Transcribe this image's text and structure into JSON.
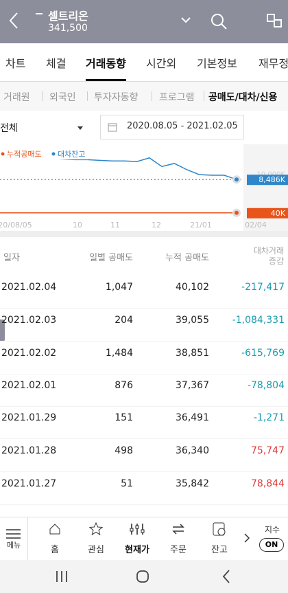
{
  "header": {
    "title": "셀트리온",
    "price": "341,500"
  },
  "tabs": [
    "차트",
    "체결",
    "거래동향",
    "시간외",
    "기본정보",
    "재무정보"
  ],
  "subtabs": [
    "거래원",
    "외국인",
    "투자자동향",
    "프로그램",
    "공매도/대차/신용"
  ],
  "filter": {
    "scope": "전체",
    "period": "2020.08.05 - 2021.02.05"
  },
  "chart": {
    "type": "line",
    "ylim": [
      0,
      16000
    ],
    "yticks": [
      {
        "value": 10000,
        "label": "10,000K"
      }
    ],
    "x_labels": [
      "20/08/05",
      "10",
      "11",
      "12",
      "21/01",
      "02/04"
    ],
    "series": [
      {
        "name": "누적공매도",
        "color": "#e8541a",
        "values": [
          40,
          40,
          40,
          40,
          40,
          40,
          40,
          40,
          40,
          40,
          40,
          40,
          40,
          40,
          40,
          40,
          40,
          40,
          40,
          40
        ],
        "value_labels": [
          null,
          null,
          null,
          null,
          null,
          null,
          null,
          null,
          null,
          null,
          null,
          null,
          null,
          null,
          null,
          null,
          null,
          null,
          null,
          "40K"
        ]
      },
      {
        "name": "대차잔고",
        "color": "#2f86c9",
        "values": [
          14431,
          14274,
          14117,
          13961,
          13804,
          13647,
          13490,
          13490,
          13333,
          13176,
          13176,
          13020,
          13960,
          11765,
          12549,
          10980,
          9725,
          9569,
          9569,
          8486
        ],
        "value_labels": [
          null,
          null,
          null,
          null,
          null,
          null,
          null,
          null,
          null,
          null,
          null,
          null,
          null,
          null,
          null,
          null,
          null,
          null,
          null,
          "8,486K"
        ]
      }
    ]
  },
  "table": {
    "columns": [
      "일자",
      "일별 공매도",
      "누적 공매도",
      "대차거래 증감"
    ],
    "rows": [
      [
        "2021.02.04",
        "1,047",
        "40,102",
        "-217,417"
      ],
      [
        "2021.02.03",
        "204",
        "39,055",
        "-1,084,331"
      ],
      [
        "2021.02.02",
        "1,484",
        "38,851",
        "-615,769"
      ],
      [
        "2021.02.01",
        "876",
        "37,367",
        "-78,804"
      ],
      [
        "2021.01.29",
        "151",
        "36,491",
        "-1,271"
      ],
      [
        "2021.01.28",
        "498",
        "36,340",
        "75,747"
      ],
      [
        "2021.01.27",
        "51",
        "35,842",
        "78,844"
      ]
    ]
  },
  "nav": {
    "items": [
      "메뉴",
      "홈",
      "관심",
      "현재가",
      "주문",
      "잔고"
    ],
    "index": "지수",
    "toggle": "ON"
  }
}
